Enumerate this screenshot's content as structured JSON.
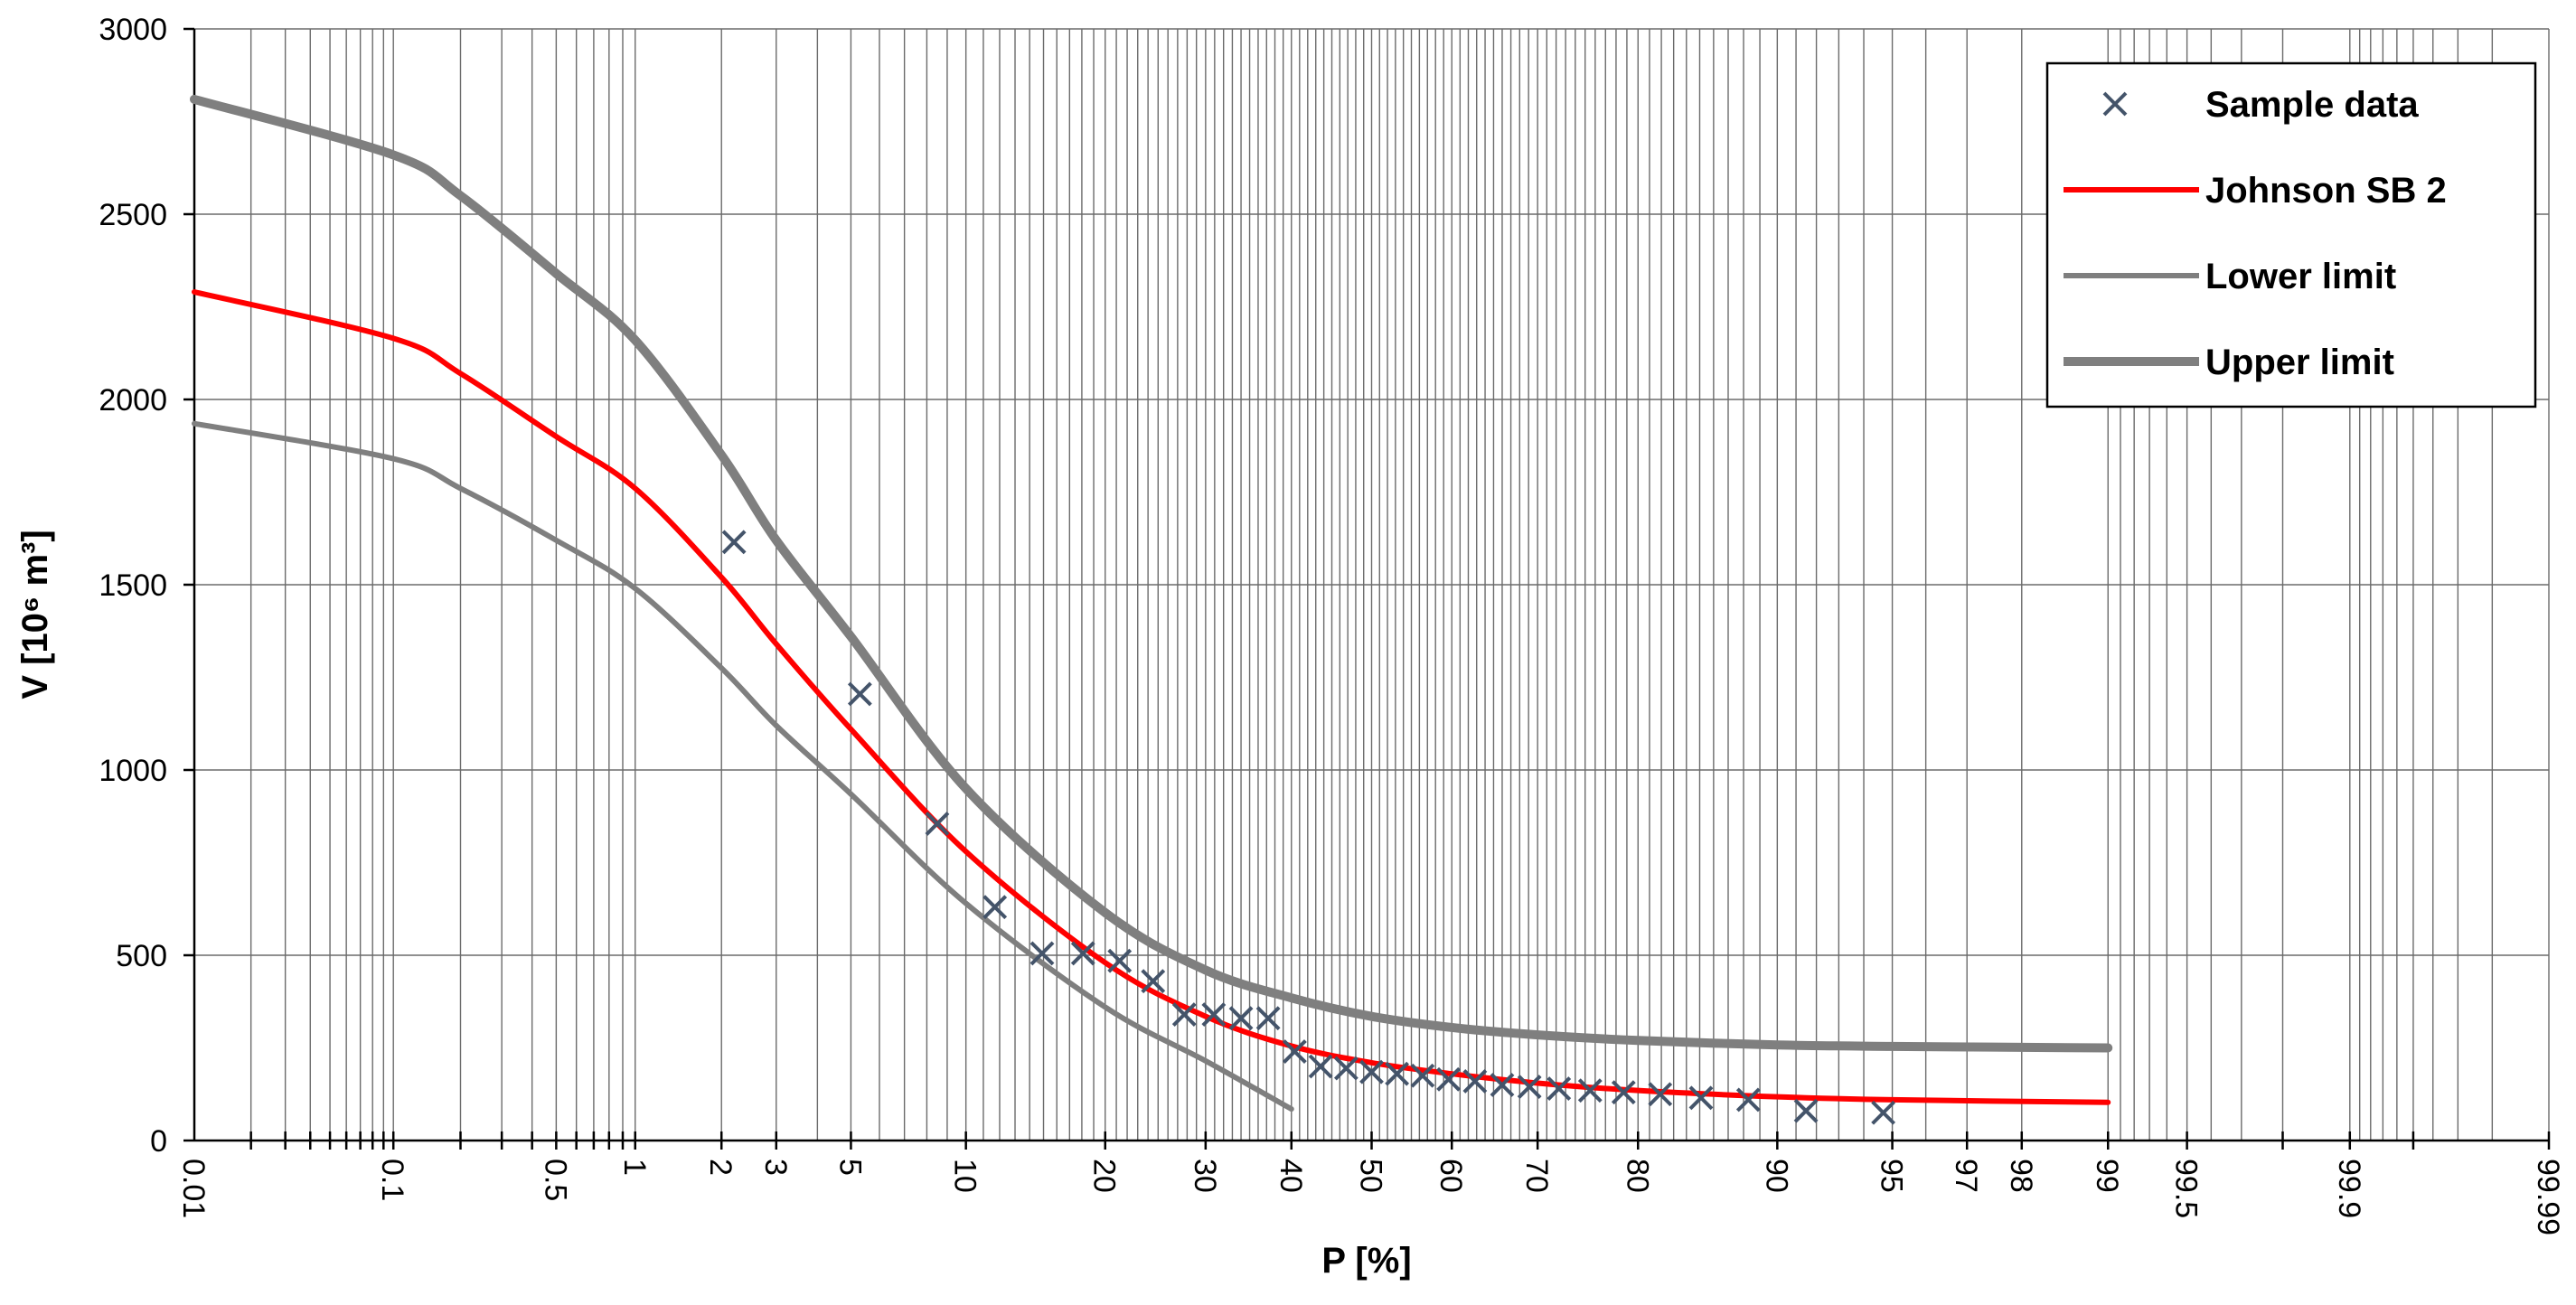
{
  "chart_data": {
    "type": "line",
    "xlabel": "P [%]",
    "ylabel": "V [10⁶ m³]",
    "ylim": [
      0,
      3000
    ],
    "yticks": [
      0,
      500,
      1000,
      1500,
      2000,
      2500,
      3000
    ],
    "xscale": "normal-probability",
    "xlim": [
      0.01,
      99.99
    ],
    "xtick_labels": [
      "0.01",
      "0.1",
      "0.5",
      "1",
      "2",
      "3",
      "5",
      "10",
      "20",
      "30",
      "40",
      "50",
      "60",
      "70",
      "80",
      "90",
      "95",
      "97",
      "98",
      "99",
      "99.5",
      "99.9",
      "99.99"
    ],
    "grid": true,
    "legend_position": "top-right",
    "series": [
      {
        "name": "Sample data",
        "style": "scatter",
        "marker": "x",
        "color": "#44546A",
        "points": [
          [
            2.2,
            1615
          ],
          [
            5.3,
            1205
          ],
          [
            8.5,
            855
          ],
          [
            11.7,
            630
          ],
          [
            14.9,
            505
          ],
          [
            18.1,
            505
          ],
          [
            21.3,
            485
          ],
          [
            24.5,
            430
          ],
          [
            27.7,
            340
          ],
          [
            30.9,
            340
          ],
          [
            34.0,
            330
          ],
          [
            37.2,
            330
          ],
          [
            40.4,
            240
          ],
          [
            43.6,
            200
          ],
          [
            46.8,
            195
          ],
          [
            50.0,
            185
          ],
          [
            53.2,
            180
          ],
          [
            56.4,
            175
          ],
          [
            59.6,
            165
          ],
          [
            62.8,
            160
          ],
          [
            66.0,
            150
          ],
          [
            69.1,
            145
          ],
          [
            72.3,
            140
          ],
          [
            75.5,
            135
          ],
          [
            78.7,
            130
          ],
          [
            81.9,
            125
          ],
          [
            85.1,
            115
          ],
          [
            88.3,
            110
          ],
          [
            91.5,
            80
          ],
          [
            94.7,
            75
          ]
        ]
      },
      {
        "name": "Johnson SB 2",
        "style": "line",
        "color": "#FF0000",
        "points": [
          [
            0.01,
            2290
          ],
          [
            0.1,
            2165
          ],
          [
            0.2,
            2070
          ],
          [
            0.5,
            1900
          ],
          [
            1,
            1760
          ],
          [
            2,
            1520
          ],
          [
            3,
            1340
          ],
          [
            5,
            1110
          ],
          [
            10,
            780
          ],
          [
            20,
            480
          ],
          [
            30,
            335
          ],
          [
            40,
            255
          ],
          [
            50,
            210
          ],
          [
            60,
            180
          ],
          [
            70,
            155
          ],
          [
            80,
            135
          ],
          [
            90,
            118
          ],
          [
            95,
            110
          ],
          [
            99,
            103
          ]
        ]
      },
      {
        "name": "Lower limit",
        "style": "line",
        "color": "#7F7F7F",
        "points": [
          [
            0.01,
            1935
          ],
          [
            0.1,
            1840
          ],
          [
            0.2,
            1760
          ],
          [
            0.5,
            1620
          ],
          [
            1,
            1490
          ],
          [
            2,
            1275
          ],
          [
            3,
            1120
          ],
          [
            5,
            935
          ],
          [
            10,
            640
          ],
          [
            20,
            360
          ],
          [
            30,
            215
          ],
          [
            40,
            85
          ]
        ]
      },
      {
        "name": "Upper limit",
        "style": "line",
        "color": "#7F7F7F",
        "points": [
          [
            0.01,
            2810
          ],
          [
            0.1,
            2660
          ],
          [
            0.2,
            2550
          ],
          [
            0.5,
            2340
          ],
          [
            1,
            2160
          ],
          [
            2,
            1850
          ],
          [
            3,
            1620
          ],
          [
            5,
            1360
          ],
          [
            10,
            950
          ],
          [
            20,
            615
          ],
          [
            30,
            460
          ],
          [
            40,
            385
          ],
          [
            50,
            335
          ],
          [
            60,
            305
          ],
          [
            70,
            285
          ],
          [
            80,
            270
          ],
          [
            90,
            258
          ],
          [
            95,
            254
          ],
          [
            99,
            250
          ]
        ]
      }
    ]
  }
}
